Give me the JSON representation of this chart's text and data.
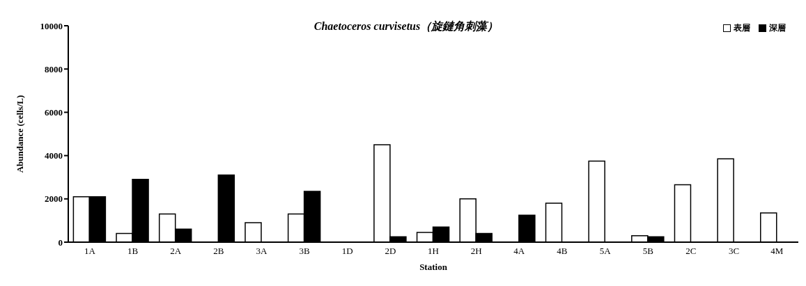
{
  "chart_data": {
    "type": "bar",
    "title": "Chaetoceros curvisetus（旋鏈角刺藻）",
    "xlabel": "Station",
    "ylabel": "Abundance (cells/L)",
    "categories": [
      "1A",
      "1B",
      "2A",
      "2B",
      "3A",
      "3B",
      "1D",
      "2D",
      "1H",
      "2H",
      "4A",
      "4B",
      "5A",
      "5B",
      "2C",
      "3C",
      "4M"
    ],
    "series": [
      {
        "name": "表層",
        "color": "#ffffff",
        "values": [
          2100,
          400,
          1300,
          0,
          900,
          1300,
          0,
          4500,
          450,
          2000,
          0,
          1800,
          3750,
          300,
          2650,
          3850,
          1350
        ]
      },
      {
        "name": "深層",
        "color": "#000000",
        "values": [
          2100,
          2900,
          600,
          3100,
          0,
          2350,
          0,
          250,
          700,
          400,
          1250,
          0,
          0,
          250,
          0,
          0,
          0
        ]
      }
    ],
    "ylim": [
      0,
      10000
    ],
    "yticks": [
      0,
      2000,
      4000,
      6000,
      8000,
      10000
    ],
    "grid": false,
    "legend": "top right"
  }
}
